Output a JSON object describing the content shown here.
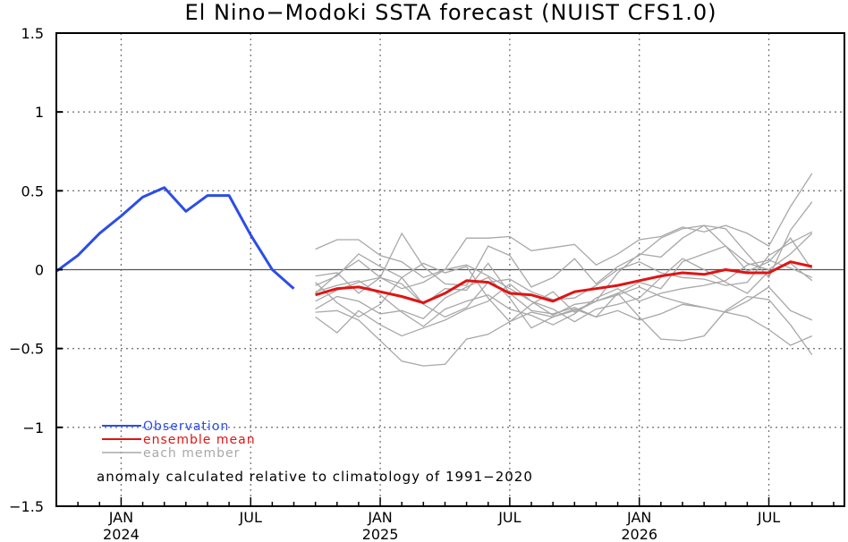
{
  "chart_data": {
    "type": "line",
    "title": "El Nino−Modoki SSTA forecast (NUIST CFS1.0)",
    "xlabel": "",
    "ylabel": "",
    "ylim": [
      -1.5,
      1.5
    ],
    "yticks": [
      1.5,
      1,
      0.5,
      0,
      -0.5,
      -1,
      -1.5
    ],
    "ytick_labels": [
      "1.5",
      "1",
      "0.5",
      "0",
      "−0.5",
      "−1",
      "−1.5"
    ],
    "x_unit": "month index from Oct 2023",
    "xlim": [
      0,
      36.5
    ],
    "xticks": [
      {
        "x": 3,
        "label": "JAN",
        "year": "2024"
      },
      {
        "x": 9,
        "label": "JUL",
        "year": ""
      },
      {
        "x": 15,
        "label": "JAN",
        "year": "2025"
      },
      {
        "x": 21,
        "label": "JUL",
        "year": ""
      },
      {
        "x": 27,
        "label": "JAN",
        "year": "2026"
      },
      {
        "x": 33,
        "label": "JUL",
        "year": ""
      }
    ],
    "grid": true,
    "legend_position": "bottom-left",
    "series": [
      {
        "name": "Observation",
        "color": "#2b4de8",
        "x": [
          0,
          1,
          2,
          3,
          4,
          5,
          6,
          7,
          8,
          9,
          10,
          11
        ],
        "values": [
          -0.01,
          0.09,
          0.23,
          0.34,
          0.46,
          0.52,
          0.37,
          0.47,
          0.47,
          0.22,
          0.0,
          -0.12
        ]
      },
      {
        "name": "ensemble mean",
        "color": "#e01414",
        "x": [
          12,
          13,
          14,
          15,
          16,
          17,
          18,
          19,
          20,
          21,
          22,
          23,
          24,
          25,
          26,
          27,
          28,
          29,
          30,
          31,
          32,
          33,
          34,
          35
        ],
        "values": [
          -0.16,
          -0.12,
          -0.11,
          -0.14,
          -0.17,
          -0.21,
          -0.15,
          -0.07,
          -0.08,
          -0.15,
          -0.16,
          -0.2,
          -0.14,
          -0.12,
          -0.1,
          -0.07,
          -0.04,
          -0.02,
          -0.03,
          0.0,
          -0.02,
          -0.02,
          0.05,
          0.02
        ]
      }
    ],
    "members": {
      "name": "each member",
      "color": "#a8a8a8",
      "x": [
        12,
        13,
        14,
        15,
        16,
        17,
        18,
        19,
        20,
        21,
        22,
        23,
        24,
        25,
        26,
        27,
        28,
        29,
        30,
        31,
        32,
        33,
        34,
        35
      ],
      "values": [
        [
          0.13,
          0.19,
          0.19,
          0.09,
          0.05,
          -0.05,
          0.0,
          0.2,
          0.2,
          0.21,
          0.12,
          0.14,
          0.16,
          0.03,
          0.1,
          0.19,
          0.21,
          0.27,
          0.24,
          0.28,
          0.23,
          0.15,
          0.4,
          0.61
        ],
        [
          -0.15,
          -0.03,
          0.06,
          -0.05,
          0.23,
          0.02,
          -0.09,
          -0.1,
          0.15,
          0.09,
          -0.11,
          -0.05,
          0.07,
          -0.09,
          0.02,
          0.09,
          0.2,
          0.26,
          0.28,
          0.26,
          0.1,
          -0.05,
          0.25,
          0.43
        ],
        [
          -0.08,
          -0.21,
          -0.3,
          -0.22,
          -0.05,
          0.04,
          -0.02,
          0.02,
          -0.18,
          -0.33,
          -0.22,
          -0.14,
          -0.27,
          -0.2,
          -0.02,
          0.1,
          0.08,
          0.2,
          0.28,
          0.15,
          0.04,
          0.0,
          0.1,
          0.23
        ],
        [
          -0.3,
          -0.4,
          -0.26,
          -0.35,
          -0.42,
          -0.37,
          -0.32,
          -0.25,
          -0.2,
          -0.09,
          -0.2,
          -0.29,
          -0.22,
          -0.2,
          -0.15,
          -0.08,
          -0.12,
          0.05,
          0.1,
          0.15,
          -0.01,
          0.05,
          0.2,
          0.0
        ],
        [
          -0.27,
          -0.26,
          -0.32,
          -0.45,
          -0.58,
          -0.61,
          -0.6,
          -0.44,
          -0.41,
          -0.33,
          -0.27,
          -0.3,
          -0.25,
          -0.3,
          -0.15,
          -0.3,
          -0.44,
          -0.45,
          -0.42,
          -0.26,
          -0.17,
          -0.19,
          -0.35,
          -0.54
        ],
        [
          -0.04,
          -0.02,
          -0.15,
          -0.05,
          -0.09,
          -0.22,
          -0.12,
          -0.13,
          0.04,
          -0.15,
          -0.26,
          -0.28,
          -0.24,
          -0.3,
          -0.26,
          -0.32,
          -0.28,
          -0.22,
          -0.24,
          -0.27,
          -0.3,
          -0.38,
          -0.48,
          -0.42
        ],
        [
          -0.25,
          -0.17,
          -0.2,
          -0.28,
          -0.26,
          -0.31,
          -0.18,
          -0.11,
          -0.05,
          -0.18,
          -0.37,
          -0.3,
          -0.26,
          -0.2,
          -0.16,
          -0.11,
          -0.17,
          -0.21,
          -0.24,
          -0.27,
          -0.2,
          -0.11,
          -0.26,
          -0.32
        ],
        [
          -0.2,
          -0.13,
          -0.08,
          -0.05,
          -0.12,
          -0.08,
          0.0,
          0.03,
          -0.04,
          -0.12,
          -0.2,
          -0.25,
          -0.33,
          -0.25,
          -0.22,
          -0.18,
          -0.05,
          0.07,
          0.0,
          -0.08,
          -0.15,
          -0.01,
          0.04,
          -0.07
        ],
        [
          -0.1,
          -0.04,
          0.1,
          0.02,
          -0.05,
          -0.22,
          -0.3,
          -0.24,
          -0.08,
          -0.06,
          -0.14,
          -0.19,
          -0.18,
          -0.1,
          0.0,
          0.05,
          -0.02,
          -0.05,
          -0.06,
          -0.1,
          -0.08,
          0.09,
          0.17,
          0.24
        ],
        [
          -0.14,
          -0.1,
          -0.07,
          -0.16,
          -0.27,
          -0.36,
          -0.25,
          -0.2,
          -0.16,
          -0.25,
          -0.29,
          -0.35,
          -0.28,
          -0.18,
          -0.12,
          -0.2,
          -0.15,
          -0.12,
          -0.1,
          -0.07,
          0.03,
          0.06,
          0.01,
          -0.05
        ]
      ]
    },
    "legend": [
      {
        "label": "Observation",
        "color": "#2b4de8"
      },
      {
        "label": "ensemble mean",
        "color": "#e01414"
      },
      {
        "label": "each member",
        "color": "#a8a8a8"
      }
    ],
    "annotation": "anomaly calculated relative to climatology of 1991−2020"
  }
}
